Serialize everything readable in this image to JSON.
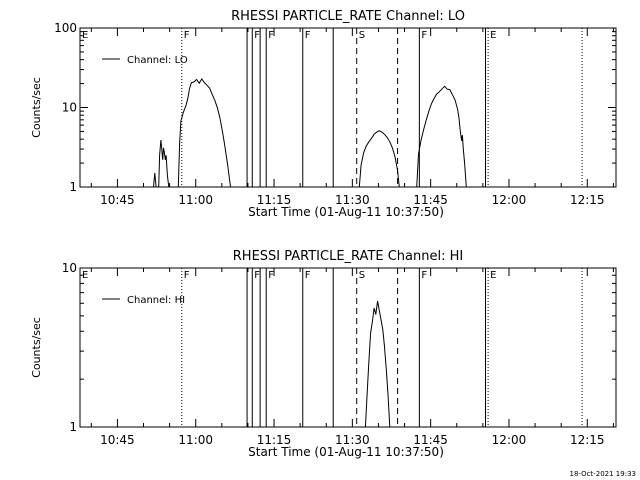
{
  "chart_data": [
    {
      "type": "line",
      "title": "RHESSI PARTICLE_RATE Channel: LO",
      "xlabel": "Start Time (01-Aug-11 10:37:50)",
      "ylabel": "Counts/sec",
      "xlim": [
        "10:37:50",
        "12:20:30"
      ],
      "ylim": [
        1,
        100
      ],
      "yscale": "log",
      "x_tick_labels": [
        "10:45",
        "11:00",
        "11:15",
        "11:30",
        "11:45",
        "12:00",
        "12:15"
      ],
      "y_tick_labels": [
        "1",
        "10",
        "100"
      ],
      "y_tick_values": [
        1,
        10,
        100
      ],
      "legend": {
        "entries": [
          "Channel: LO"
        ],
        "placement": "top-left"
      },
      "grid": false,
      "series": [
        {
          "name": "Channel: LO",
          "segments": [
            [
              [
                "10:51:55",
                1.0
              ],
              [
                "10:52:10",
                1.5
              ],
              [
                "10:52:25",
                1.0
              ]
            ],
            [
              [
                "10:52:55",
                1.0
              ],
              [
                "10:53:05",
                2.5
              ],
              [
                "10:53:20",
                3.9
              ],
              [
                "10:53:30",
                3.0
              ],
              [
                "10:53:40",
                2.2
              ],
              [
                "10:53:50",
                3.1
              ],
              [
                "10:54:00",
                2.7
              ],
              [
                "10:54:10",
                2.2
              ],
              [
                "10:54:20",
                2.5
              ],
              [
                "10:54:35",
                1.4
              ],
              [
                "10:54:50",
                1.0
              ]
            ],
            [
              [
                "10:56:40",
                1.0
              ],
              [
                "10:56:55",
                3.5
              ],
              [
                "10:57:10",
                6.8
              ],
              [
                "10:57:40",
                8.8
              ],
              [
                "10:58:10",
                10.8
              ],
              [
                "10:58:30",
                13.2
              ],
              [
                "10:58:50",
                17.5
              ],
              [
                "10:59:10",
                20.5
              ],
              [
                "10:59:40",
                21.0
              ],
              [
                "11:00:10",
                22.5
              ],
              [
                "11:00:40",
                20.2
              ],
              [
                "11:01:10",
                22.8
              ],
              [
                "11:01:40",
                20.5
              ],
              [
                "11:02:10",
                19.0
              ],
              [
                "11:02:40",
                17.5
              ],
              [
                "11:03:10",
                14.5
              ],
              [
                "11:03:40",
                12.2
              ],
              [
                "11:04:10",
                9.8
              ],
              [
                "11:04:40",
                7.2
              ],
              [
                "11:05:10",
                4.8
              ],
              [
                "11:05:40",
                3.0
              ],
              [
                "11:06:10",
                1.8
              ],
              [
                "11:06:40",
                1.0
              ]
            ],
            [
              [
                "11:31:20",
                1.0
              ],
              [
                "11:31:40",
                1.9
              ],
              [
                "11:32:10",
                2.7
              ],
              [
                "11:32:40",
                3.3
              ],
              [
                "11:33:10",
                3.7
              ],
              [
                "11:33:40",
                4.1
              ],
              [
                "11:34:10",
                4.6
              ],
              [
                "11:34:40",
                4.9
              ],
              [
                "11:35:10",
                5.1
              ],
              [
                "11:35:40",
                4.9
              ],
              [
                "11:36:10",
                4.6
              ],
              [
                "11:36:40",
                4.2
              ],
              [
                "11:37:10",
                3.7
              ],
              [
                "11:37:40",
                3.1
              ],
              [
                "11:38:10",
                2.4
              ],
              [
                "11:38:40",
                1.6
              ],
              [
                "11:39:00",
                1.0
              ]
            ],
            [
              [
                "11:42:20",
                1.0
              ],
              [
                "11:42:40",
                2.6
              ],
              [
                "11:43:10",
                3.9
              ],
              [
                "11:43:40",
                5.3
              ],
              [
                "11:44:10",
                7.0
              ],
              [
                "11:44:40",
                9.0
              ],
              [
                "11:45:10",
                11.2
              ],
              [
                "11:45:40",
                13.0
              ],
              [
                "11:46:10",
                14.8
              ],
              [
                "11:46:40",
                15.8
              ],
              [
                "11:47:10",
                17.2
              ],
              [
                "11:47:40",
                18.5
              ],
              [
                "11:48:10",
                17.0
              ],
              [
                "11:48:40",
                16.8
              ],
              [
                "11:49:10",
                14.5
              ],
              [
                "11:49:40",
                12.5
              ],
              [
                "11:50:10",
                9.5
              ],
              [
                "11:50:25",
                7.5
              ],
              [
                "11:50:40",
                5.2
              ],
              [
                "11:50:55",
                3.8
              ],
              [
                "11:51:05",
                4.5
              ],
              [
                "11:51:15",
                3.0
              ],
              [
                "11:51:30",
                2.0
              ],
              [
                "11:51:50",
                1.0
              ]
            ]
          ]
        }
      ],
      "vertical_lines": [
        {
          "time": "10:57:20",
          "style": "dotted",
          "label": "F"
        },
        {
          "time": "11:09:50",
          "style": "solid",
          "label": ""
        },
        {
          "time": "11:10:50",
          "style": "solid",
          "label": "F"
        },
        {
          "time": "11:12:20",
          "style": "solid",
          "label": ""
        },
        {
          "time": "11:13:30",
          "style": "solid",
          "label": "F"
        },
        {
          "time": "11:20:30",
          "style": "solid",
          "label": "F"
        },
        {
          "time": "11:26:20",
          "style": "solid",
          "label": ""
        },
        {
          "time": "11:30:50",
          "style": "dashed",
          "label": "S"
        },
        {
          "time": "11:38:40",
          "style": "dashed",
          "label": ""
        },
        {
          "time": "11:42:50",
          "style": "solid",
          "label": "F"
        },
        {
          "time": "11:55:30",
          "style": "solid",
          "label": ""
        },
        {
          "time": "11:56:00",
          "style": "dotted",
          "label": "E"
        },
        {
          "time": "12:14:00",
          "style": "dotted",
          "label": ""
        }
      ],
      "corner_labels": [
        "E"
      ]
    },
    {
      "type": "line",
      "title": "RHESSI PARTICLE_RATE Channel: HI",
      "xlabel": "Start Time (01-Aug-11 10:37:50)",
      "ylabel": "Counts/sec",
      "xlim": [
        "10:37:50",
        "12:20:30"
      ],
      "ylim": [
        1,
        10
      ],
      "yscale": "log",
      "x_tick_labels": [
        "10:45",
        "11:00",
        "11:15",
        "11:30",
        "11:45",
        "12:00",
        "12:15"
      ],
      "y_tick_labels": [
        "1",
        "10"
      ],
      "y_tick_values": [
        1,
        10
      ],
      "legend": {
        "entries": [
          "Channel: HI"
        ],
        "placement": "top-left"
      },
      "grid": false,
      "series": [
        {
          "name": "Channel: HI",
          "segments": [
            [
              [
                "11:32:30",
                1.0
              ],
              [
                "11:32:50",
                1.6
              ],
              [
                "11:33:10",
                2.6
              ],
              [
                "11:33:30",
                3.9
              ],
              [
                "11:33:50",
                4.6
              ],
              [
                "11:34:10",
                5.6
              ],
              [
                "11:34:30",
                5.1
              ],
              [
                "11:34:50",
                6.2
              ],
              [
                "11:35:10",
                5.4
              ],
              [
                "11:35:30",
                4.7
              ],
              [
                "11:35:50",
                4.1
              ],
              [
                "11:36:10",
                3.2
              ],
              [
                "11:36:30",
                2.3
              ],
              [
                "11:36:50",
                1.6
              ],
              [
                "11:37:10",
                1.0
              ]
            ]
          ]
        }
      ],
      "vertical_lines": [
        {
          "time": "10:57:20",
          "style": "dotted",
          "label": "F"
        },
        {
          "time": "11:09:50",
          "style": "solid",
          "label": ""
        },
        {
          "time": "11:10:50",
          "style": "solid",
          "label": "F"
        },
        {
          "time": "11:12:20",
          "style": "solid",
          "label": ""
        },
        {
          "time": "11:13:30",
          "style": "solid",
          "label": "F"
        },
        {
          "time": "11:20:30",
          "style": "solid",
          "label": "F"
        },
        {
          "time": "11:26:20",
          "style": "solid",
          "label": ""
        },
        {
          "time": "11:30:50",
          "style": "dashed",
          "label": "S"
        },
        {
          "time": "11:38:40",
          "style": "dashed",
          "label": ""
        },
        {
          "time": "11:42:50",
          "style": "solid",
          "label": "F"
        },
        {
          "time": "11:55:30",
          "style": "solid",
          "label": ""
        },
        {
          "time": "11:56:00",
          "style": "dotted",
          "label": "E"
        },
        {
          "time": "12:14:00",
          "style": "dotted",
          "label": ""
        }
      ],
      "corner_labels": [
        "E"
      ]
    }
  ],
  "footer": {
    "timestamp": "18-Oct-2021 19:33"
  }
}
